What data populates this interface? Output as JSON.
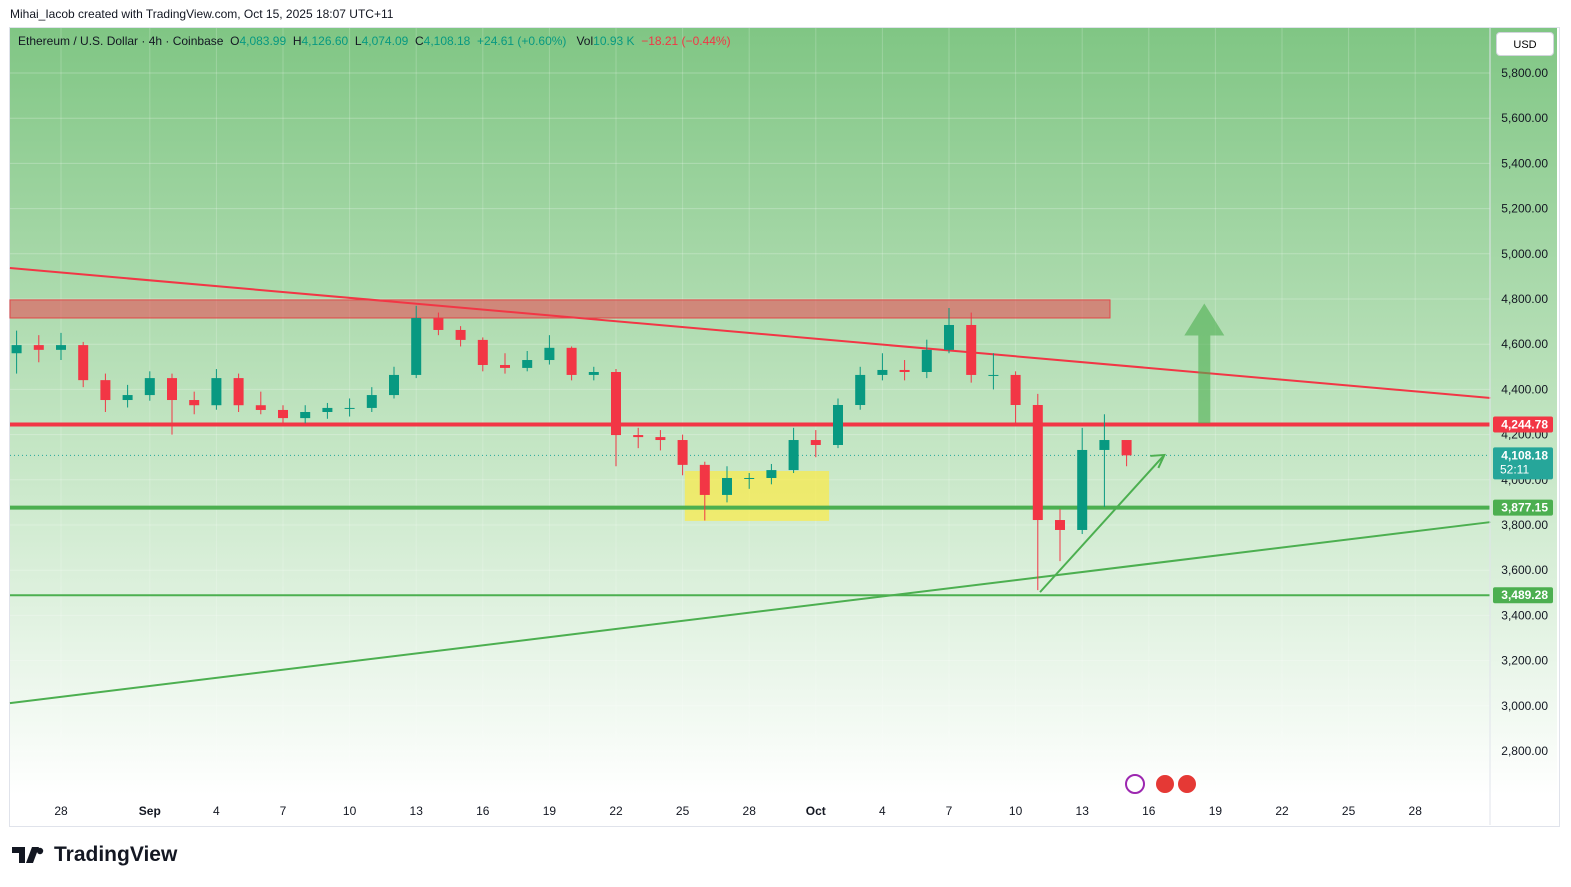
{
  "credit": "Mihai_Iacob created with TradingView.com, Oct 15, 2025 18:07 UTC+11",
  "legend": {
    "symbol": "Ethereum / U.S. Dollar · 4h · Coinbase",
    "o_label": "O",
    "o": "4,083.99",
    "h_label": "H",
    "h": "4,126.60",
    "l_label": "L",
    "l": "4,074.09",
    "c_label": "C",
    "c": "4,108.18",
    "change": "+24.61 (+0.60%)",
    "vol_label": "Vol",
    "vol": "10.93 K",
    "vol_change": "−18.21 (−0.44%)"
  },
  "currency": "USD",
  "brand": "TradingView",
  "colors": {
    "up": "#089981",
    "down": "#f23645",
    "bg_top": "#80c684",
    "resistance": "#f23645",
    "support": "#4caf50",
    "zone_yellow": "#ffeb3b"
  },
  "chart_data": {
    "type": "candlestick",
    "title": "Ethereum / U.S. Dollar · 4h · Coinbase",
    "ylim": [
      2600,
      5900
    ],
    "y_ticks": [
      "5,800.00",
      "5,600.00",
      "5,400.00",
      "5,200.00",
      "5,000.00",
      "4,800.00",
      "4,600.00",
      "4,400.00",
      "4,200.00",
      "4,000.00",
      "3,800.00",
      "3,600.00",
      "3,400.00",
      "3,200.00",
      "3,000.00",
      "2,800.00"
    ],
    "x_ticks": [
      "28",
      "Sep",
      "4",
      "7",
      "10",
      "13",
      "16",
      "19",
      "22",
      "25",
      "28",
      "Oct",
      "4",
      "7",
      "10",
      "13",
      "16",
      "19",
      "22",
      "25",
      "28"
    ],
    "x_tick_days": [
      0,
      4,
      7,
      10,
      13,
      16,
      19,
      22,
      25,
      28,
      31,
      34,
      37,
      40,
      43,
      46,
      49,
      52,
      55,
      58,
      61
    ],
    "daily_ohlc": [
      [
        -2,
        4560,
        4660,
        4470,
        4596
      ],
      [
        -1,
        4596,
        4640,
        4520,
        4575
      ],
      [
        0,
        4575,
        4650,
        4530,
        4596
      ],
      [
        1,
        4596,
        4610,
        4410,
        4441
      ],
      [
        2,
        4441,
        4470,
        4300,
        4353
      ],
      [
        3,
        4353,
        4420,
        4320,
        4375
      ],
      [
        4,
        4375,
        4480,
        4350,
        4450
      ],
      [
        5,
        4450,
        4470,
        4200,
        4353
      ],
      [
        6,
        4353,
        4390,
        4290,
        4330
      ],
      [
        7,
        4330,
        4490,
        4310,
        4450
      ],
      [
        8,
        4450,
        4470,
        4300,
        4330
      ],
      [
        9,
        4330,
        4390,
        4290,
        4309
      ],
      [
        10,
        4309,
        4330,
        4250,
        4273
      ],
      [
        11,
        4273,
        4330,
        4250,
        4300
      ],
      [
        12,
        4300,
        4340,
        4270,
        4318
      ],
      [
        13,
        4318,
        4360,
        4280,
        4318
      ],
      [
        14,
        4318,
        4410,
        4300,
        4375
      ],
      [
        15,
        4375,
        4500,
        4360,
        4464
      ],
      [
        16,
        4464,
        4770,
        4450,
        4716
      ],
      [
        17,
        4716,
        4740,
        4640,
        4663
      ],
      [
        18,
        4663,
        4680,
        4590,
        4619
      ],
      [
        19,
        4619,
        4630,
        4480,
        4508
      ],
      [
        20,
        4508,
        4560,
        4470,
        4495
      ],
      [
        21,
        4495,
        4570,
        4480,
        4530
      ],
      [
        22,
        4530,
        4640,
        4510,
        4584
      ],
      [
        23,
        4584,
        4590,
        4440,
        4464
      ],
      [
        24,
        4464,
        4500,
        4440,
        4477
      ],
      [
        25,
        4477,
        4490,
        4060,
        4198
      ],
      [
        26,
        4198,
        4230,
        4140,
        4189
      ],
      [
        27,
        4189,
        4220,
        4130,
        4176
      ],
      [
        28,
        4176,
        4200,
        4020,
        4066
      ],
      [
        29,
        4066,
        4080,
        3820,
        3933
      ],
      [
        30,
        3933,
        4060,
        3900,
        4008
      ],
      [
        31,
        4008,
        4030,
        3960,
        4008
      ],
      [
        32,
        4008,
        4070,
        3980,
        4043
      ],
      [
        33,
        4043,
        4230,
        4030,
        4176
      ],
      [
        34,
        4176,
        4220,
        4100,
        4154
      ],
      [
        35,
        4154,
        4360,
        4140,
        4331
      ],
      [
        36,
        4331,
        4500,
        4310,
        4464
      ],
      [
        37,
        4464,
        4560,
        4440,
        4486
      ],
      [
        38,
        4486,
        4530,
        4440,
        4477
      ],
      [
        39,
        4477,
        4620,
        4450,
        4575
      ],
      [
        40,
        4575,
        4760,
        4560,
        4685
      ],
      [
        41,
        4685,
        4740,
        4430,
        4464
      ],
      [
        42,
        4464,
        4560,
        4400,
        4464
      ],
      [
        43,
        4464,
        4480,
        4250,
        4331
      ],
      [
        44,
        4331,
        4380,
        3512,
        3822
      ],
      [
        45,
        3822,
        3870,
        3640,
        3778
      ],
      [
        46,
        3778,
        4230,
        3760,
        4132
      ],
      [
        47,
        4132,
        4290,
        3880,
        4176
      ],
      [
        48,
        4176,
        4150,
        4060,
        4108.18
      ]
    ],
    "day_zero": "Aug 28",
    "drawings": {
      "resistance_zone": [
        4716,
        4796
      ],
      "resistance_line": 4244.78,
      "support_line": 3877.15,
      "support_line_2": 3489.28,
      "last_price": "4,108.18",
      "countdown": "52:11",
      "labels": [
        "4,244.78",
        "4,108.18",
        "3,877.15",
        "3,489.28"
      ],
      "descending_trendline": [
        [
          -2.3,
          4937
        ],
        [
          64.4,
          4362
        ]
      ],
      "ascending_trendline": [
        [
          -2.3,
          3012
        ],
        [
          64.4,
          3813
        ]
      ],
      "demand_box": {
        "days": [
          28.1,
          34.6
        ],
        "prices": [
          3818,
          4039
        ]
      },
      "projection_arrow": [
        [
          44.1,
          3503
        ],
        [
          49.7,
          4110
        ]
      ],
      "up_arrow": {
        "day": 51.5,
        "prices": [
          4250,
          4780
        ]
      }
    }
  }
}
